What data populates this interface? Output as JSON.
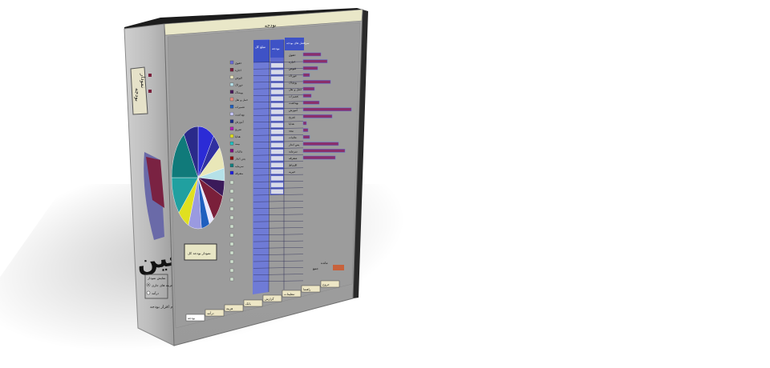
{
  "box": {
    "title": "بودجه",
    "spine": {
      "logo": "معین",
      "badge_line1": "نمودار",
      "badge_line2": "بودجه",
      "radio_group_title": "نمایش نمودار",
      "radio_options": [
        "هزینه های جاری",
        "درآمد"
      ],
      "footer": "نرم افزار بودجه"
    },
    "columns": {
      "amount_header": "مبلغ کل",
      "income_header": "بودجه",
      "category_header": "سرفصل های بودجه"
    },
    "category_rows": [
      "حقوق",
      "اجاره",
      "قبوض",
      "خوراک",
      "پوشاک",
      "حمل و نقل",
      "تعمیرات",
      "بهداشت",
      "آموزش",
      "تفریح",
      "هدایا",
      "بیمه",
      "مالیات",
      "پس انداز",
      "سرمایه",
      "متفرقه",
      "اقساط",
      "خیریه"
    ],
    "legend_items": [
      "حقوق",
      "اجاره",
      "قبوض",
      "خوراک",
      "پوشاک",
      "حمل و نقل",
      "تعمیرات",
      "بهداشت",
      "آموزش",
      "تفریح",
      "هدایا",
      "بیمه",
      "مالیات",
      "پس انداز",
      "سرمایه",
      "متفرقه"
    ],
    "chart_button": "نمودار بودجه کل",
    "sheet_tabs": [
      "بودجه",
      "درآمد",
      "هزینه",
      "بانک",
      "گزارش",
      "تنظیمات",
      "راهنما",
      "خروج"
    ],
    "bottom_labels": [
      "جمع",
      "مانده"
    ]
  }
}
